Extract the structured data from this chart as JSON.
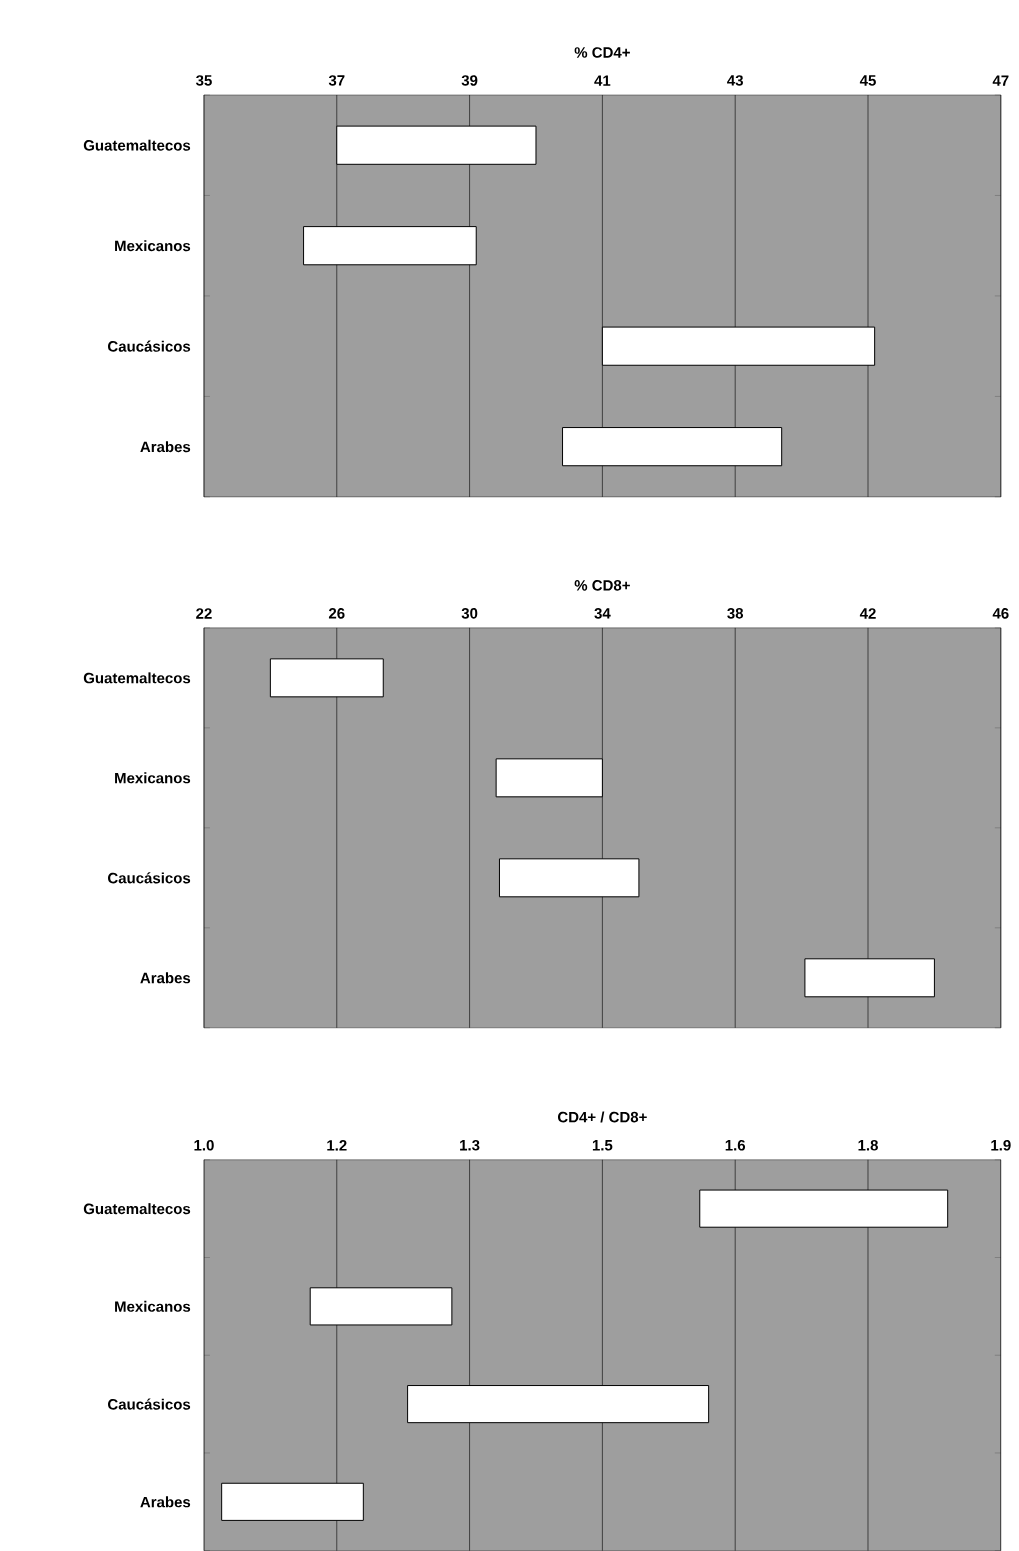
{
  "chart_data": [
    {
      "type": "bar",
      "orientation": "horizontal",
      "title": "% CD4+",
      "categories": [
        "Guatemaltecos",
        "Mexicanos",
        "Caucásicos",
        "Arabes"
      ],
      "base": [
        37,
        36.5,
        41.0,
        40.4
      ],
      "values": [
        3.0,
        2.6,
        4.1,
        3.3
      ],
      "color": "#ffffff",
      "xlim": [
        35,
        47
      ],
      "xticks": [
        35,
        37,
        39,
        41,
        43,
        45,
        47
      ],
      "grid": "x"
    },
    {
      "type": "bar",
      "orientation": "horizontal",
      "title": "% CD8+",
      "categories": [
        "Guatemaltecos",
        "Mexicanos",
        "Caucásicos",
        "Arabes"
      ],
      "base": [
        24.0,
        30.8,
        30.9,
        40.1
      ],
      "values": [
        3.4,
        3.2,
        4.2,
        3.9
      ],
      "color": "#ffffff",
      "xlim": [
        22,
        46
      ],
      "xticks": [
        22,
        26,
        30,
        34,
        38,
        42,
        46
      ],
      "grid": "x"
    },
    {
      "type": "bar",
      "orientation": "horizontal",
      "title": "CD4+ / CD8+",
      "categories": [
        "Guatemaltecos",
        "Mexicanos",
        "Caucásicos",
        "Arabes"
      ],
      "base": [
        1.56,
        1.12,
        1.23,
        1.02
      ],
      "values": [
        0.28,
        0.16,
        0.34,
        0.16
      ],
      "color": "#ffffff",
      "xlim": [
        1.0,
        1.9
      ],
      "xticks": [
        {
          "value": 1.0,
          "label": "1.0"
        },
        {
          "value": 1.15,
          "label": "1.2"
        },
        {
          "value": 1.3,
          "label": "1.3"
        },
        {
          "value": 1.45,
          "label": "1.5"
        },
        {
          "value": 1.6,
          "label": "1.6"
        },
        {
          "value": 1.75,
          "label": "1.8"
        },
        {
          "value": 1.9,
          "label": "1.9"
        }
      ],
      "grid": "x"
    }
  ]
}
